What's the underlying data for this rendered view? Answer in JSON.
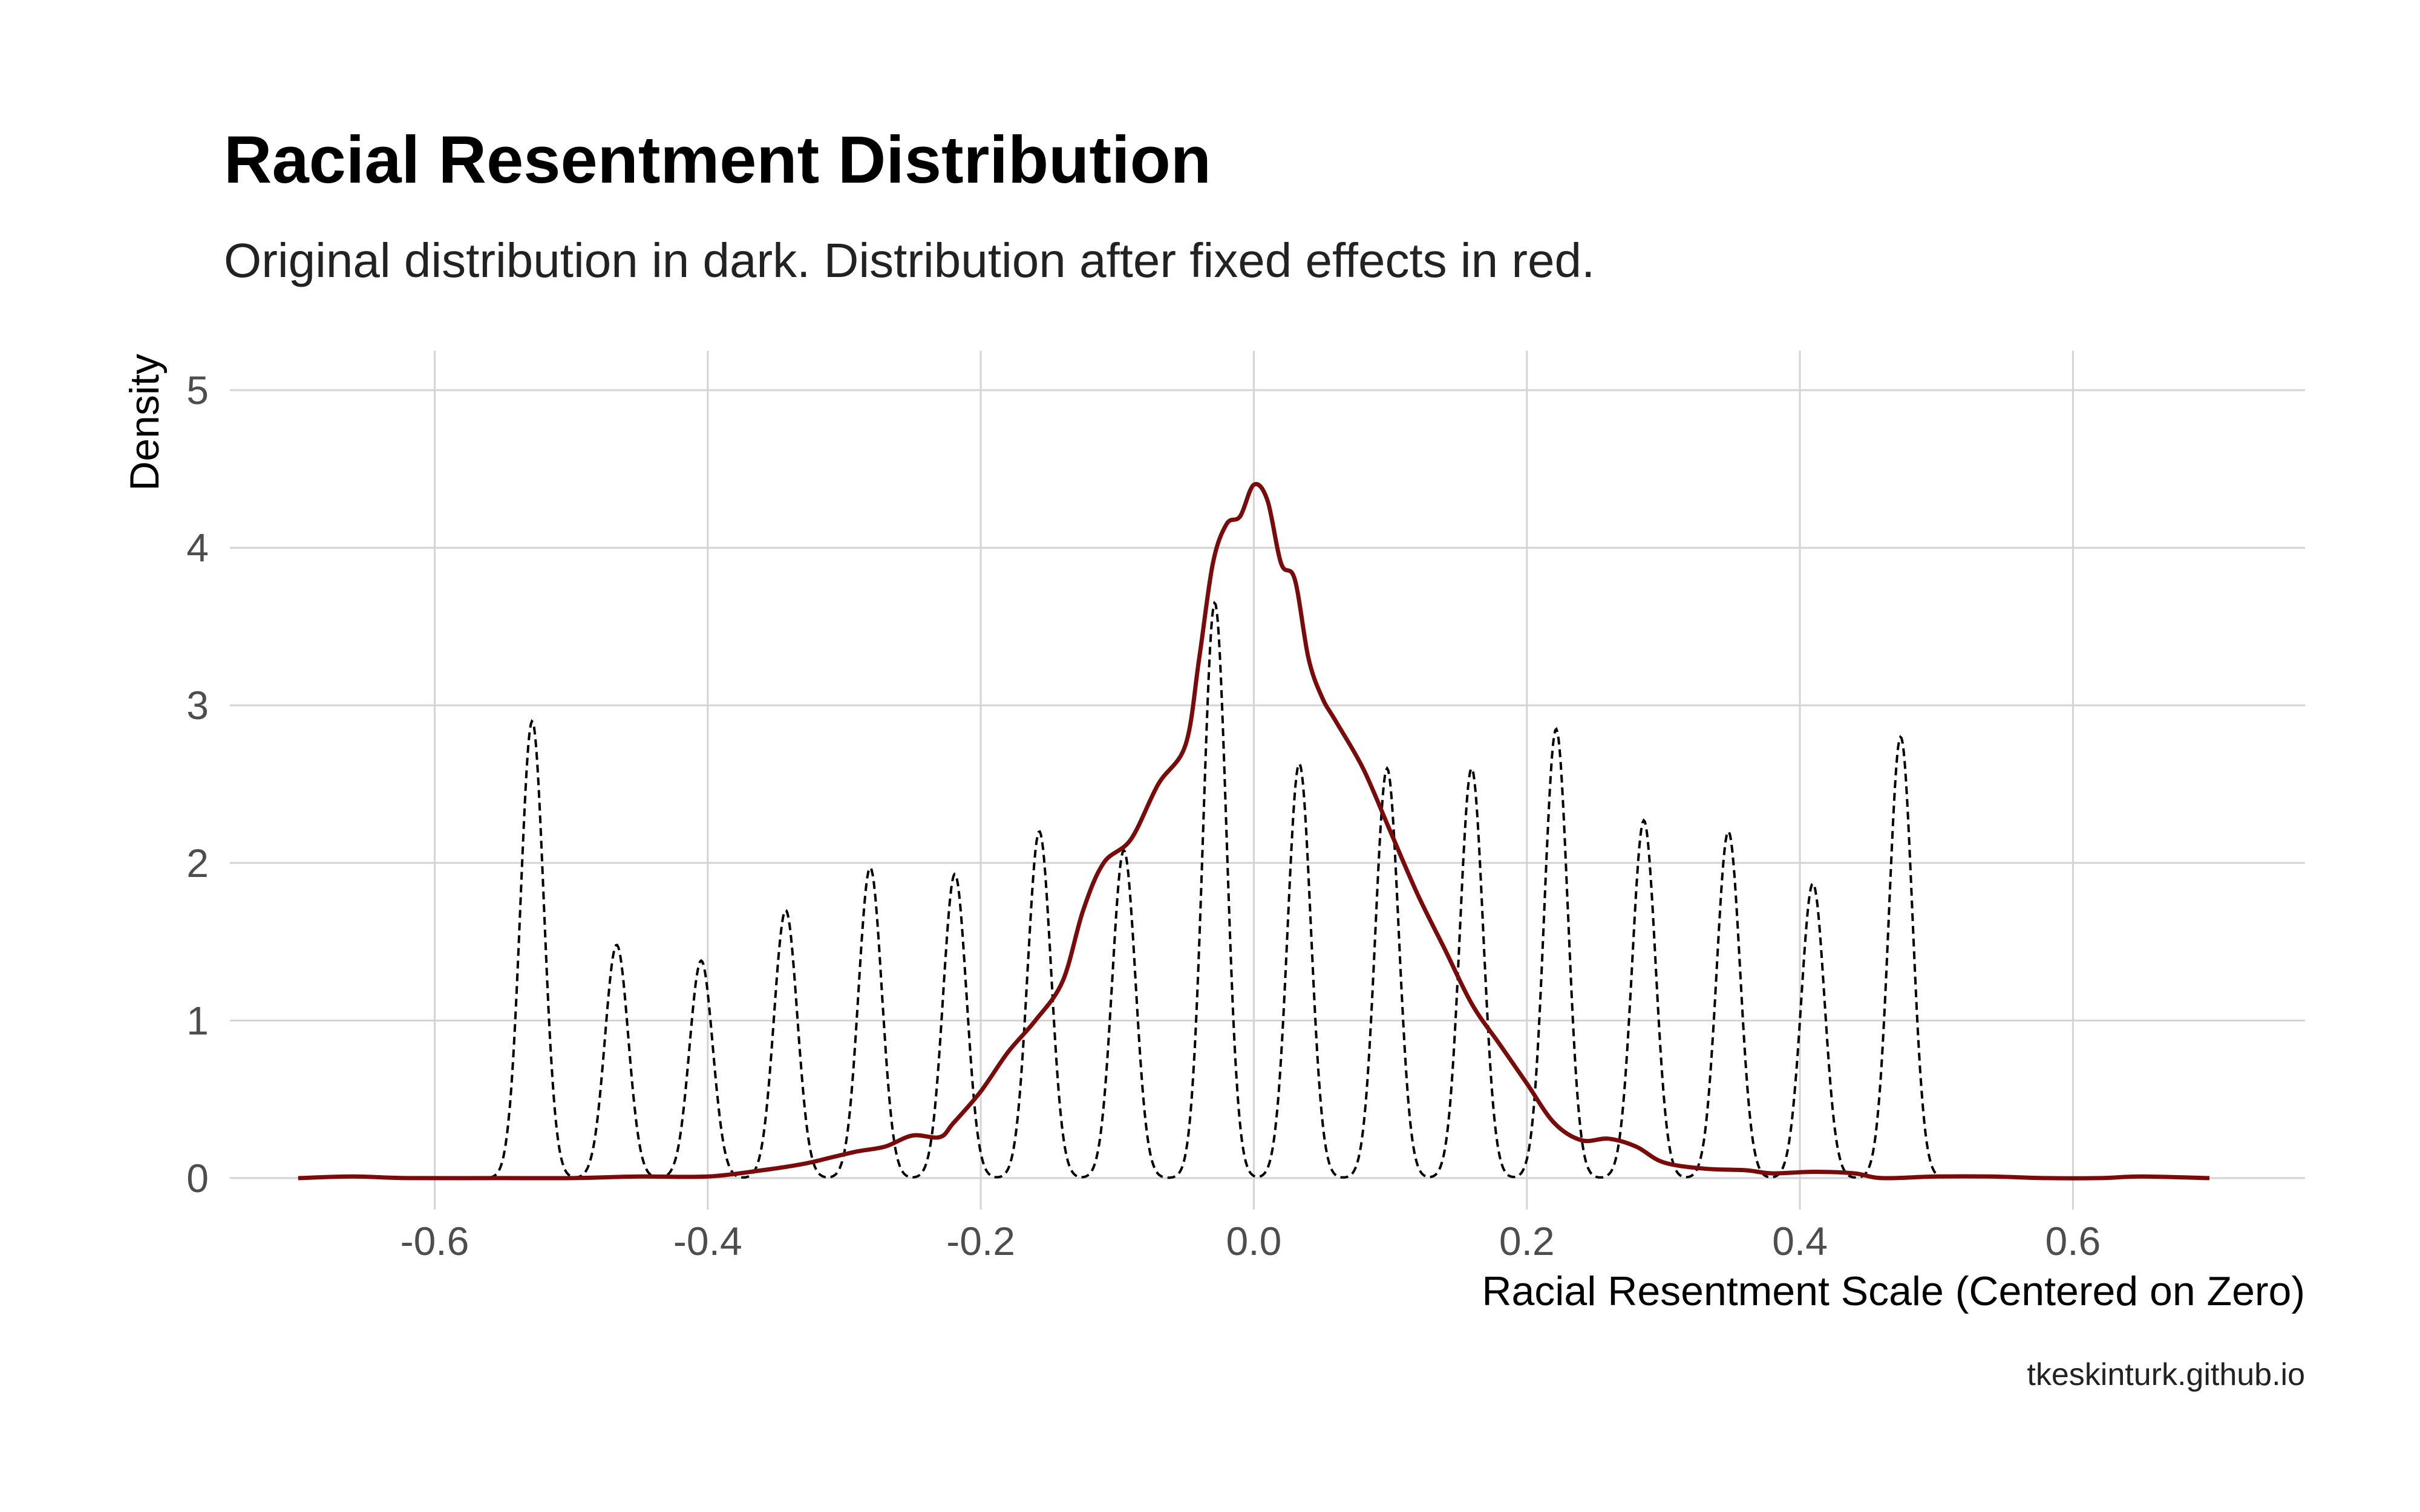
{
  "chart_data": {
    "type": "line",
    "title": "Racial Resentment Distribution",
    "subtitle": "Original distribution in dark. Distribution after fixed effects in red.",
    "xlabel": "Racial Resentment Scale (Centered on Zero)",
    "ylabel": "Density",
    "caption": "tkeskinturk.github.io",
    "xlim": [
      -0.75,
      0.77
    ],
    "ylim": [
      -0.2,
      5.25
    ],
    "x_ticks": [
      -0.6,
      -0.4,
      -0.2,
      0.0,
      0.2,
      0.4,
      0.6
    ],
    "x_tick_labels": [
      "-0.6",
      "-0.4",
      "-0.2",
      "0.0",
      "0.2",
      "0.4",
      "0.6"
    ],
    "y_ticks": [
      0,
      1,
      2,
      3,
      4,
      5
    ],
    "y_tick_labels": [
      "0",
      "1",
      "2",
      "3",
      "4",
      "5"
    ],
    "grid": true,
    "series": [
      {
        "style": "dashed",
        "color": "#000000",
        "peaks": [
          {
            "x": -0.5286,
            "y": 2.9
          },
          {
            "x": -0.4667,
            "y": 1.48
          },
          {
            "x": -0.4048,
            "y": 1.38
          },
          {
            "x": -0.3429,
            "y": 1.7
          },
          {
            "x": -0.281,
            "y": 1.97
          },
          {
            "x": -0.219,
            "y": 1.93
          },
          {
            "x": -0.1571,
            "y": 2.2
          },
          {
            "x": -0.0952,
            "y": 2.08
          },
          {
            "x": -0.0286,
            "y": 3.65
          },
          {
            "x": 0.0333,
            "y": 2.63
          },
          {
            "x": 0.0976,
            "y": 2.6
          },
          {
            "x": 0.1595,
            "y": 2.6
          },
          {
            "x": 0.2214,
            "y": 2.85
          },
          {
            "x": 0.2857,
            "y": 2.27
          },
          {
            "x": 0.3476,
            "y": 2.2
          },
          {
            "x": 0.4095,
            "y": 1.87
          },
          {
            "x": 0.4738,
            "y": 2.8
          }
        ],
        "peak_sd": 0.0085
      },
      {
        "style": "solid",
        "color": "#7a0b0b",
        "points": [
          [
            -0.7,
            0.0
          ],
          [
            -0.66,
            0.01
          ],
          [
            -0.62,
            0.0
          ],
          [
            -0.55,
            0.0
          ],
          [
            -0.5,
            0.0
          ],
          [
            -0.45,
            0.01
          ],
          [
            -0.4,
            0.01
          ],
          [
            -0.36,
            0.05
          ],
          [
            -0.33,
            0.09
          ],
          [
            -0.31,
            0.13
          ],
          [
            -0.29,
            0.17
          ],
          [
            -0.27,
            0.2
          ],
          [
            -0.25,
            0.27
          ],
          [
            -0.23,
            0.26
          ],
          [
            -0.22,
            0.35
          ],
          [
            -0.2,
            0.55
          ],
          [
            -0.18,
            0.8
          ],
          [
            -0.16,
            1.0
          ],
          [
            -0.14,
            1.25
          ],
          [
            -0.125,
            1.7
          ],
          [
            -0.11,
            2.0
          ],
          [
            -0.09,
            2.15
          ],
          [
            -0.07,
            2.5
          ],
          [
            -0.05,
            2.75
          ],
          [
            -0.04,
            3.3
          ],
          [
            -0.03,
            3.9
          ],
          [
            -0.02,
            4.15
          ],
          [
            -0.01,
            4.2
          ],
          [
            0.0,
            4.4
          ],
          [
            0.01,
            4.3
          ],
          [
            0.02,
            3.9
          ],
          [
            0.03,
            3.8
          ],
          [
            0.04,
            3.3
          ],
          [
            0.05,
            3.05
          ],
          [
            0.06,
            2.9
          ],
          [
            0.08,
            2.6
          ],
          [
            0.1,
            2.2
          ],
          [
            0.12,
            1.8
          ],
          [
            0.14,
            1.45
          ],
          [
            0.16,
            1.1
          ],
          [
            0.18,
            0.85
          ],
          [
            0.2,
            0.6
          ],
          [
            0.22,
            0.35
          ],
          [
            0.24,
            0.24
          ],
          [
            0.26,
            0.25
          ],
          [
            0.28,
            0.2
          ],
          [
            0.3,
            0.1
          ],
          [
            0.33,
            0.06
          ],
          [
            0.36,
            0.05
          ],
          [
            0.38,
            0.03
          ],
          [
            0.41,
            0.04
          ],
          [
            0.44,
            0.03
          ],
          [
            0.46,
            0.0
          ],
          [
            0.5,
            0.01
          ],
          [
            0.54,
            0.01
          ],
          [
            0.58,
            0.0
          ],
          [
            0.62,
            0.0
          ],
          [
            0.65,
            0.01
          ],
          [
            0.7,
            0.0
          ]
        ]
      }
    ]
  }
}
